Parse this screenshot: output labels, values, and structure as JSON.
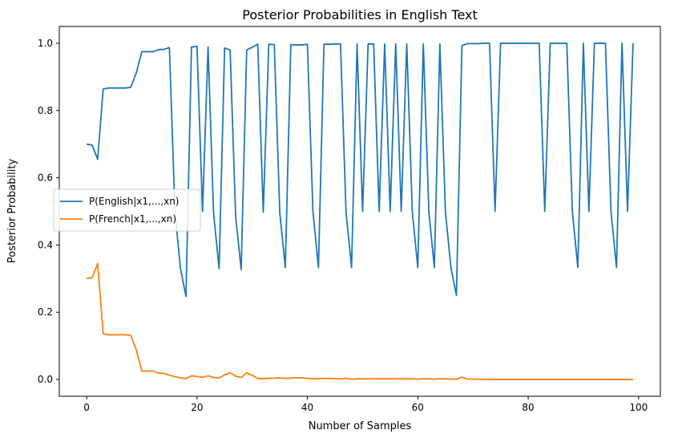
{
  "chart_data": {
    "type": "line",
    "title": "Posterior Probabilities in English Text",
    "xlabel": "Number of Samples",
    "ylabel": "Posterior Probability",
    "xlim": [
      -4.95,
      103.95
    ],
    "ylim": [
      -0.05,
      1.05
    ],
    "xticks": [
      0,
      20,
      40,
      60,
      80,
      100
    ],
    "xtick_labels": [
      "0",
      "20",
      "40",
      "60",
      "80",
      "100"
    ],
    "yticks": [
      0.0,
      0.2,
      0.4,
      0.6,
      0.8,
      1.0
    ],
    "ytick_labels": [
      "0.0",
      "0.2",
      "0.4",
      "0.6",
      "0.8",
      "1.0"
    ],
    "grid": false,
    "legend_position": "center-left",
    "x": [
      0,
      1,
      2,
      3,
      4,
      5,
      6,
      7,
      8,
      9,
      10,
      11,
      12,
      13,
      14,
      15,
      16,
      17,
      18,
      19,
      20,
      21,
      22,
      23,
      24,
      25,
      26,
      27,
      28,
      29,
      30,
      31,
      32,
      33,
      34,
      35,
      36,
      37,
      38,
      39,
      40,
      41,
      42,
      43,
      44,
      45,
      46,
      47,
      48,
      49,
      50,
      51,
      52,
      53,
      54,
      55,
      56,
      57,
      58,
      59,
      60,
      61,
      62,
      63,
      64,
      65,
      66,
      67,
      68,
      69,
      70,
      71,
      72,
      73,
      74,
      75,
      76,
      77,
      78,
      79,
      80,
      81,
      82,
      83,
      84,
      85,
      86,
      87,
      88,
      89,
      90,
      91,
      92,
      93,
      94,
      95,
      96,
      97,
      98,
      99
    ],
    "series": [
      {
        "name": "P(English|x1,...,xn)",
        "color": "#1f77b4",
        "values": [
          0.7,
          0.697,
          0.655,
          0.864,
          0.867,
          0.867,
          0.867,
          0.867,
          0.869,
          0.912,
          0.975,
          0.975,
          0.975,
          0.981,
          0.982,
          0.987,
          0.5,
          0.33,
          0.247,
          0.989,
          0.991,
          0.5,
          0.989,
          0.494,
          0.33,
          0.986,
          0.98,
          0.485,
          0.327,
          0.98,
          0.988,
          0.997,
          0.498,
          0.997,
          0.996,
          0.495,
          0.333,
          0.996,
          0.995,
          0.995,
          0.997,
          0.5,
          0.333,
          0.997,
          0.997,
          0.998,
          0.998,
          0.497,
          0.333,
          0.998,
          0.5,
          0.998,
          0.998,
          0.5,
          0.998,
          0.5,
          0.998,
          0.5,
          0.998,
          0.5,
          0.333,
          0.998,
          0.5,
          0.333,
          0.998,
          0.5,
          0.333,
          0.25,
          0.993,
          0.999,
          0.999,
          0.999,
          1.0,
          1.0,
          0.5,
          1.0,
          1.0,
          1.0,
          1.0,
          1.0,
          1.0,
          1.0,
          1.0,
          0.5,
          1.0,
          1.0,
          1.0,
          1.0,
          0.5,
          0.333,
          1.0,
          0.5,
          1.0,
          1.0,
          1.0,
          0.5,
          0.333,
          1.0,
          0.5,
          1.0
        ]
      },
      {
        "name": "P(French|x1,...,xn)",
        "color": "#ff7f0e",
        "values": [
          0.3,
          0.303,
          0.345,
          0.136,
          0.133,
          0.133,
          0.133,
          0.133,
          0.131,
          0.088,
          0.025,
          0.025,
          0.025,
          0.019,
          0.018,
          0.013,
          0.008,
          0.005,
          0.003,
          0.011,
          0.009,
          0.006,
          0.011,
          0.006,
          0.004,
          0.014,
          0.02,
          0.01,
          0.006,
          0.02,
          0.012,
          0.003,
          0.002,
          0.003,
          0.004,
          0.005,
          0.003,
          0.004,
          0.005,
          0.005,
          0.003,
          0.002,
          0.002,
          0.003,
          0.003,
          0.002,
          0.002,
          0.003,
          0.001,
          0.002,
          0.002,
          0.002,
          0.002,
          0.002,
          0.002,
          0.002,
          0.002,
          0.002,
          0.002,
          0.002,
          0.001,
          0.002,
          0.002,
          0.001,
          0.002,
          0.002,
          0.001,
          0.001,
          0.007,
          0.001,
          0.001,
          0.001,
          0.0,
          0.0,
          0.0,
          0.0,
          0.0,
          0.0,
          0.0,
          0.0,
          0.0,
          0.0,
          0.0,
          0.0,
          0.0,
          0.0,
          0.0,
          0.0,
          0.0,
          0.0,
          0.0,
          0.0,
          0.0,
          0.0,
          0.0,
          0.0,
          0.0,
          0.0,
          0.0,
          0.0
        ]
      }
    ]
  }
}
